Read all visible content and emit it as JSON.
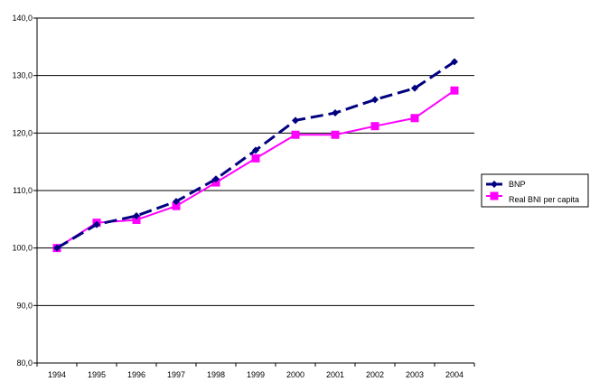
{
  "chart_data": {
    "type": "line",
    "title": "",
    "xlabel": "",
    "ylabel": "",
    "categories": [
      "1994",
      "1995",
      "1996",
      "1997",
      "1998",
      "1999",
      "2000",
      "2001",
      "2002",
      "2003",
      "2004"
    ],
    "ylim": [
      80,
      140
    ],
    "yticks": [
      "80,0",
      "90,0",
      "100,0",
      "110,0",
      "120,0",
      "130,0",
      "140,0"
    ],
    "grid": true,
    "legend_position": "right",
    "series": [
      {
        "name": "BNP",
        "color": "#000080",
        "line_style": "dashed",
        "marker": "diamond",
        "values": [
          100.0,
          104.1,
          105.6,
          108.1,
          112.0,
          117.0,
          122.2,
          123.5,
          125.8,
          127.8,
          132.4
        ]
      },
      {
        "name": "Real BNI per capita",
        "color": "#FF00FF",
        "line_style": "solid",
        "marker": "square",
        "values": [
          100.0,
          104.4,
          104.9,
          107.3,
          111.4,
          115.6,
          119.7,
          119.7,
          121.2,
          122.6,
          127.4
        ]
      }
    ]
  }
}
